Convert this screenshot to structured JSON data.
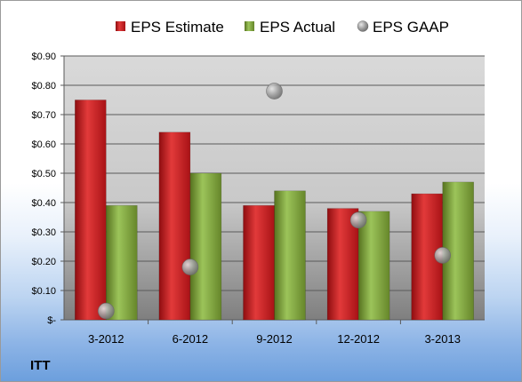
{
  "chart_data": {
    "type": "bar",
    "title": "",
    "xlabel": "",
    "ylabel": "",
    "categories": [
      "3-2012",
      "6-2012",
      "9-2012",
      "12-2012",
      "3-2013"
    ],
    "series": [
      {
        "name": "EPS Estimate",
        "kind": "bar",
        "color": "#c0181c",
        "values": [
          0.75,
          0.64,
          0.39,
          0.38,
          0.43
        ]
      },
      {
        "name": "EPS Actual",
        "kind": "bar",
        "color": "#7ea23a",
        "values": [
          0.39,
          0.5,
          0.44,
          0.37,
          0.47
        ]
      },
      {
        "name": "EPS GAAP",
        "kind": "marker",
        "color": "#9a9a9a",
        "values": [
          0.03,
          0.18,
          0.78,
          0.34,
          0.22
        ]
      }
    ],
    "ylim": [
      0,
      0.9
    ],
    "yticks": [
      0,
      0.1,
      0.2,
      0.3,
      0.4,
      0.5,
      0.6,
      0.7,
      0.8,
      0.9
    ],
    "ytick_labels": [
      "$-",
      "$0.10",
      "$0.20",
      "$0.30",
      "$0.40",
      "$0.50",
      "$0.60",
      "$0.70",
      "$0.80",
      "$0.90"
    ],
    "grid": true,
    "legend_position": "top"
  },
  "ticker": "ITT"
}
